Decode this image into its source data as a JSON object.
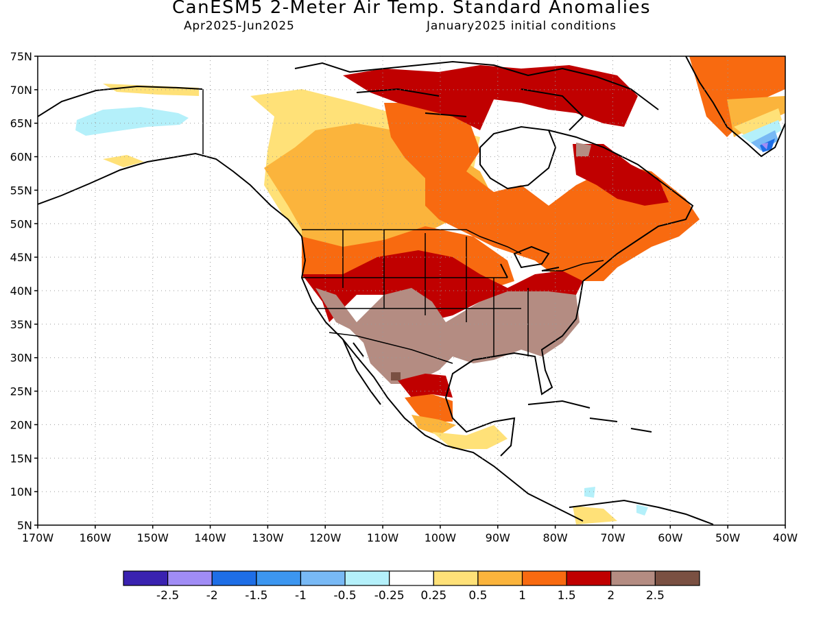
{
  "header": {
    "title": "CanESM5 2-Meter Air Temp. Standard Anomalies",
    "period": "Apr2025-Jun2025",
    "init": "January2025 initial conditions"
  },
  "map": {
    "lon_range": [
      -170,
      -40
    ],
    "lat_range": [
      5,
      75
    ],
    "lat_labels": [
      "75N",
      "70N",
      "65N",
      "60N",
      "55N",
      "50N",
      "45N",
      "40N",
      "35N",
      "30N",
      "25N",
      "20N",
      "15N",
      "10N",
      "5N"
    ],
    "lon_labels": [
      "170W",
      "160W",
      "150W",
      "140W",
      "130W",
      "120W",
      "110W",
      "100W",
      "90W",
      "80W",
      "70W",
      "60W",
      "50W",
      "40W"
    ],
    "grid": "dotted"
  },
  "colorbar": {
    "colors": [
      "#3a22b0",
      "#a08cf5",
      "#1e6ee6",
      "#3c96f0",
      "#78b9f5",
      "#b4f0fa",
      "#ffffff",
      "#ffe178",
      "#fbb43c",
      "#f86a10",
      "#c00000",
      "#b48c82",
      "#7a5042"
    ],
    "labels": [
      "-2.5",
      "-2",
      "-1.5",
      "-1",
      "-0.5",
      "-0.25",
      "0.25",
      "0.5",
      "1",
      "1.5",
      "2",
      "2.5"
    ]
  },
  "anomaly_regions": [
    {
      "name": "alaska-north-slope",
      "value": "0.25-0.5"
    },
    {
      "name": "alaska-interior",
      "value": "-0.25--0.5"
    },
    {
      "name": "western-canada",
      "value": "0.5-1"
    },
    {
      "name": "eastern-canada",
      "value": "1-1.5"
    },
    {
      "name": "canadian-arctic",
      "value": "1.5-2"
    },
    {
      "name": "us-southwest-south",
      "value": "2-2.5"
    },
    {
      "name": "greenland-south",
      "value": "-0.5--2.5"
    }
  ]
}
